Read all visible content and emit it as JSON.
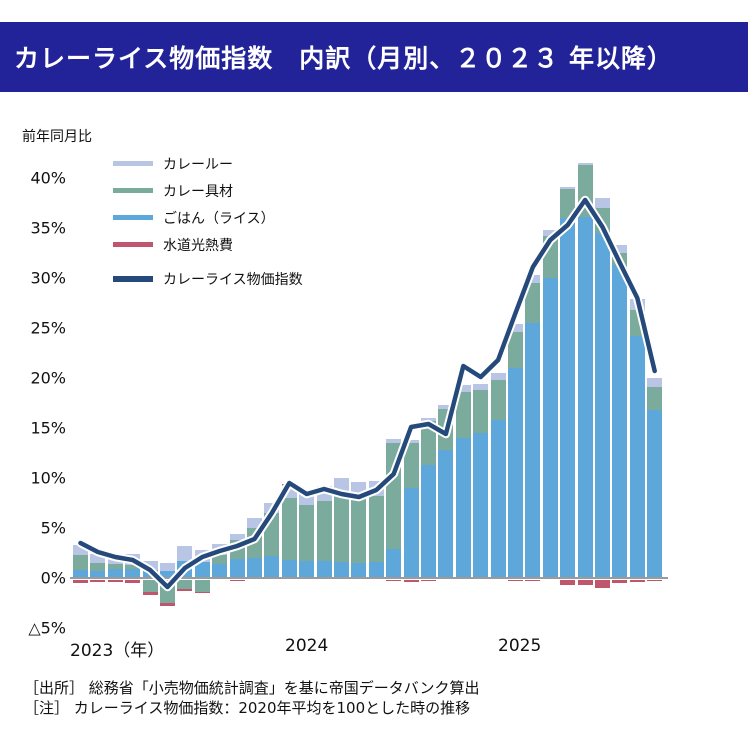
{
  "title_bar": {
    "title": "カレーライス物価指数　内訳（月別、２０２３ 年以降）",
    "bg_color": "#232399",
    "text_color": "#ffffff"
  },
  "axis_caption": "前年同月比",
  "x_axis": {
    "labels": [
      {
        "text": "2023（年）",
        "x": 70
      },
      {
        "text": "2024",
        "x": 285
      },
      {
        "text": "2025",
        "x": 498
      }
    ]
  },
  "y_axis": {
    "ticks": [
      {
        "label": "40%",
        "value": 40
      },
      {
        "label": "35%",
        "value": 35
      },
      {
        "label": "30%",
        "value": 30
      },
      {
        "label": "25%",
        "value": 25
      },
      {
        "label": "20%",
        "value": 20
      },
      {
        "label": "15%",
        "value": 15
      },
      {
        "label": "10%",
        "value": 10
      },
      {
        "label": "5%",
        "value": 5
      },
      {
        "label": "0%",
        "value": 0
      },
      {
        "label": "△5%",
        "value": -5
      }
    ]
  },
  "chart_data": {
    "type": "stacked-bar+line",
    "title": "カレーライス物価指数　内訳（月別、２０２３年以降）",
    "ylabel": "前年同月比",
    "ylim": [
      -5,
      40
    ],
    "grid": false,
    "legend_position": "upper-left",
    "categories": [
      "2023-01",
      "2023-02",
      "2023-03",
      "2023-04",
      "2023-05",
      "2023-06",
      "2023-07",
      "2023-08",
      "2023-09",
      "2023-10",
      "2023-11",
      "2023-12",
      "2024-01",
      "2024-02",
      "2024-03",
      "2024-04",
      "2024-05",
      "2024-06",
      "2024-07",
      "2024-08",
      "2024-09",
      "2024-10",
      "2024-11",
      "2024-12",
      "2025-01",
      "2025-02",
      "2025-03",
      "2025-04",
      "2025-05",
      "2025-06",
      "2025-07",
      "2025-08",
      "2025-09",
      "2025-10"
    ],
    "bar_series": [
      {
        "name": "ごはん（ライス）",
        "color": "#5ea7da",
        "values": [
          0.8,
          0.7,
          0.9,
          0.9,
          0.8,
          0.7,
          1.7,
          1.6,
          1.4,
          1.9,
          2.0,
          2.2,
          1.8,
          1.7,
          1.7,
          1.6,
          1.5,
          1.6,
          2.9,
          9.0,
          11.3,
          12.8,
          14.0,
          14.5,
          15.8,
          21.0,
          25.5,
          30.0,
          36.0,
          36.1,
          34.5,
          31.3,
          24.2,
          16.8
        ]
      },
      {
        "name": "カレー具材",
        "color": "#7aab9d",
        "values": [
          1.5,
          0.8,
          0.5,
          0.4,
          -1.2,
          -2.3,
          -0.9,
          -1.2,
          0.9,
          1.9,
          3.0,
          4.3,
          6.2,
          5.6,
          6.0,
          6.8,
          6.5,
          6.6,
          10.6,
          4.5,
          4.4,
          4.1,
          4.6,
          4.3,
          4.0,
          3.6,
          4.0,
          4.2,
          2.9,
          5.2,
          2.5,
          1.2,
          2.6,
          2.3
        ]
      },
      {
        "name": "カレールー",
        "color": "#b9c5e4",
        "values": [
          1.0,
          0.9,
          0.8,
          1.1,
          0.9,
          0.8,
          1.5,
          1.2,
          1.1,
          0.6,
          1.0,
          1.0,
          1.3,
          1.4,
          1.5,
          1.6,
          1.6,
          1.5,
          0.4,
          0.3,
          0.3,
          0.4,
          0.7,
          0.6,
          0.7,
          0.8,
          0.8,
          0.6,
          0.2,
          0.2,
          1.0,
          0.8,
          1.1,
          0.9
        ]
      },
      {
        "name": "水道光熱費",
        "color": "#c0556e",
        "values": [
          -0.3,
          -0.2,
          -0.2,
          -0.3,
          -0.3,
          -0.3,
          -0.2,
          -0.1,
          0,
          -0.1,
          0,
          0,
          0.1,
          0,
          0,
          0,
          0,
          0,
          -0.1,
          -0.2,
          -0.1,
          0,
          0,
          0,
          0,
          -0.1,
          -0.1,
          0,
          -0.5,
          -0.5,
          -0.8,
          -0.3,
          -0.2,
          -0.1
        ]
      }
    ],
    "line_series": {
      "name": "カレーライス物価指数",
      "color": "#25497a",
      "halo_color": "#ffffff",
      "values": [
        3.5,
        2.6,
        2.1,
        1.8,
        0.8,
        -0.9,
        1.0,
        2.1,
        2.7,
        3.2,
        3.9,
        6.5,
        9.5,
        8.4,
        8.9,
        8.4,
        8.1,
        8.8,
        10.4,
        15.1,
        15.4,
        14.4,
        21.2,
        20.1,
        21.8,
        26.5,
        31.1,
        33.8,
        35.3,
        37.8,
        35.1,
        31.5,
        28.0,
        20.7
      ]
    }
  },
  "legend": {
    "items": [
      {
        "label": "カレールー"
      },
      {
        "label": "カレー具材"
      },
      {
        "label": "ごはん（ライス）"
      },
      {
        "label": "水道光熱費"
      },
      {
        "label": "カレーライス物価指数"
      }
    ]
  },
  "footer": {
    "source_line": "［出所］ 総務省「小売物価統計調査」を基に帝国データバンク算出",
    "note_line": "［注］ カレーライス物価指数：2020年平均を100とした時の推移"
  }
}
